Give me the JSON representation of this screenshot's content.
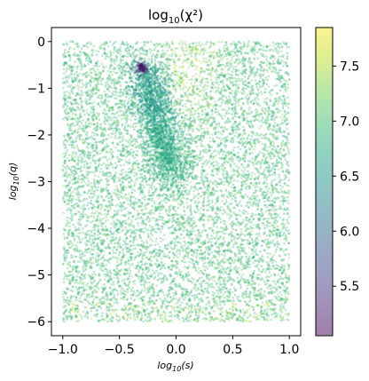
{
  "chart_data": {
    "type": "scatter",
    "title_main": "log",
    "title_sub": "10",
    "title_tail": "(χ²)",
    "xlabel_main": "log",
    "xlabel_sub": "10",
    "xlabel_tail": "(s)",
    "ylabel_main": "log",
    "ylabel_sub": "10",
    "ylabel_tail": "(q)",
    "xlim": [
      -1.1,
      1.1
    ],
    "ylim": [
      -6.3,
      0.3
    ],
    "x_ticks": [
      -1.0,
      -0.5,
      0.0,
      0.5,
      1.0
    ],
    "x_tick_labels": [
      "−1.0",
      "−0.5",
      "0.0",
      "0.5",
      "1.0"
    ],
    "y_ticks": [
      0,
      -1,
      -2,
      -3,
      -4,
      -5,
      -6
    ],
    "y_tick_labels": [
      "0",
      "−1",
      "−2",
      "−3",
      "−4",
      "−5",
      "−6"
    ],
    "colorbar": {
      "colormap": "viridis",
      "range": [
        5.05,
        7.85
      ],
      "ticks": [
        5.5,
        6.0,
        6.5,
        7.0,
        7.5
      ],
      "tick_labels": [
        "5.5",
        "6.0",
        "6.5",
        "7.0",
        "7.5"
      ]
    },
    "point_alpha": 0.35,
    "grid": false,
    "sampled_points": {
      "n_background": 9000,
      "n_cluster": 2200,
      "n_minimum": 120,
      "x_range": [
        -1.0,
        1.0
      ],
      "y_range": [
        -6.0,
        0.0
      ],
      "minimum_location": [
        -0.3,
        -0.55
      ],
      "minimum_value": 5.1,
      "background_value_range": [
        6.7,
        7.4
      ],
      "high_value_region": "upper center, log10(s) 0 to 0.3, log10(q) 0 to -1.5"
    }
  }
}
